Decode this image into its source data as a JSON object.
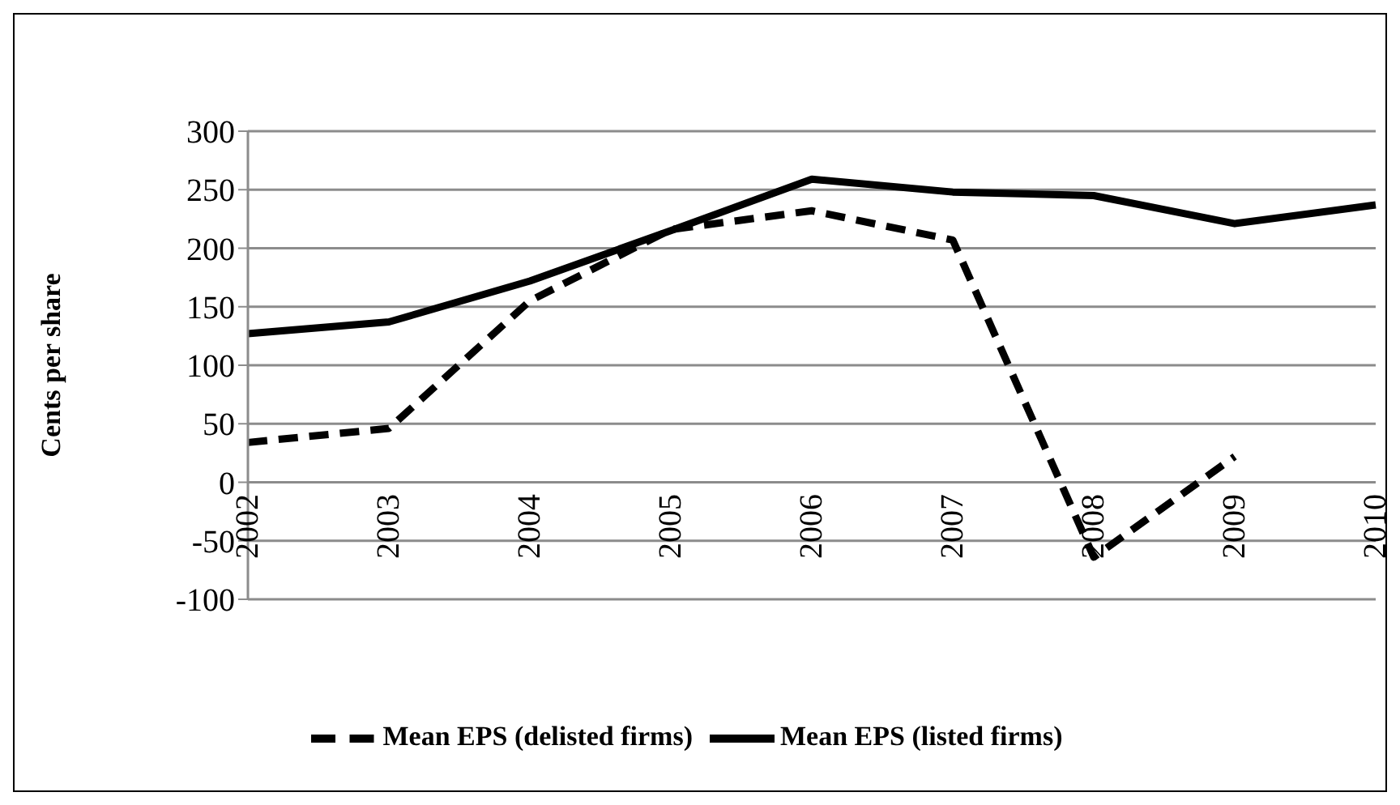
{
  "chart_data": {
    "type": "line",
    "ylabel": "Cents per share",
    "categories": [
      "2002",
      "2003",
      "2004",
      "2005",
      "2006",
      "2007",
      "2008",
      "2009",
      "2010"
    ],
    "series": [
      {
        "name": "Mean EPS (listed firms)",
        "color": "#000000",
        "line_style": "solid",
        "values": [
          127,
          137,
          172,
          215,
          259,
          248,
          245,
          221,
          237
        ]
      },
      {
        "name": "Mean EPS (delisted firms)",
        "color": "#000000",
        "line_style": "dashed",
        "values": [
          34,
          46,
          155,
          216,
          232,
          207,
          -64,
          22,
          null
        ]
      }
    ],
    "ylim": [
      -100,
      300
    ],
    "yticks": [
      -100,
      -50,
      0,
      50,
      100,
      150,
      200,
      250,
      300
    ],
    "grid": "y",
    "legend": "bottom",
    "marker": "none"
  }
}
